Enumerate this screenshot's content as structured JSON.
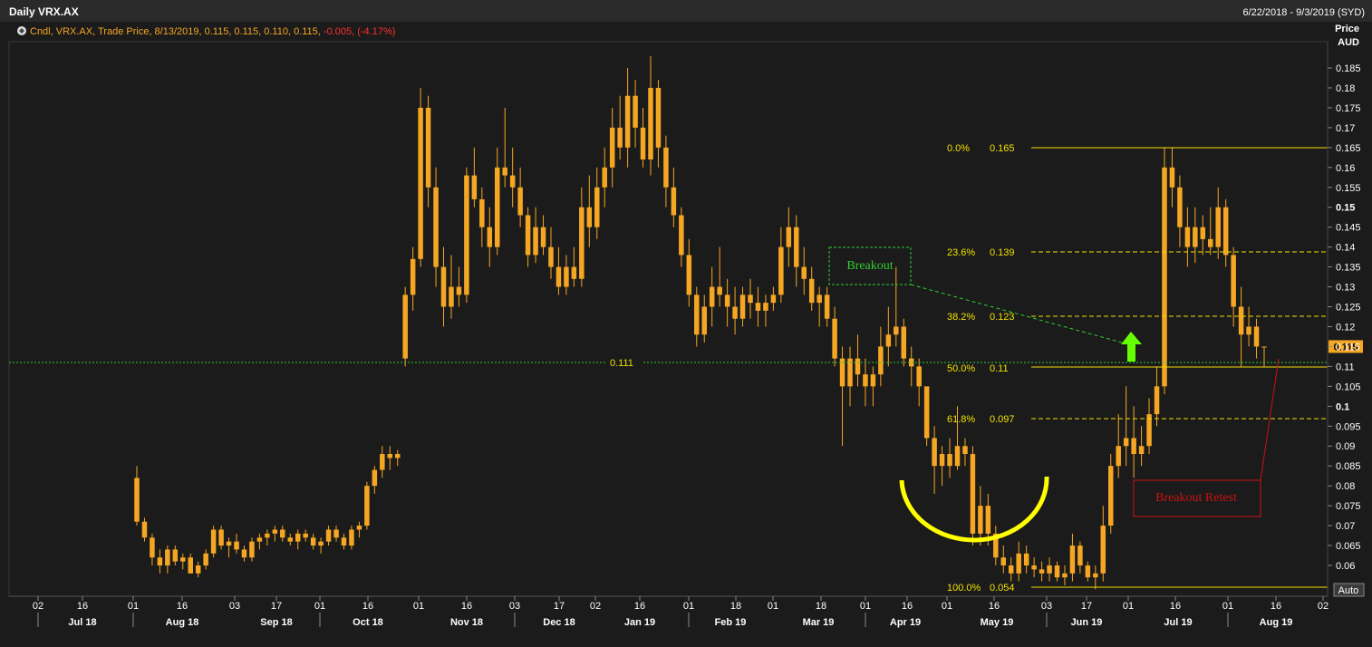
{
  "header": {
    "title": "Daily VRX.AX",
    "date_range": "6/22/2018 - 9/3/2019 (SYD)"
  },
  "legend": {
    "prefix": "Cndl, VRX.AX, Trade Price, 8/13/2019, 0.115, 0.115, 0.110, 0.115, ",
    "change": "-0.005, (-4.17%)"
  },
  "axis": {
    "price_label_1": "Price",
    "price_label_2": "AUD",
    "auto_label": "Auto",
    "current_price_label": "0.115",
    "level_label": "0.111",
    "y_ticks": [
      "0.185",
      "0.18",
      "0.175",
      "0.17",
      "0.165",
      "0.16",
      "0.155",
      "0.15",
      "0.145",
      "0.14",
      "0.135",
      "0.13",
      "0.125",
      "0.12",
      "0.115",
      "0.11",
      "0.105",
      "0.1",
      "0.095",
      "0.09",
      "0.085",
      "0.08",
      "0.075",
      "0.07",
      "0.065",
      "0.06"
    ],
    "x_day_ticks": [
      "02",
      "16",
      "01",
      "16",
      "03",
      "17",
      "01",
      "16",
      "01",
      "16",
      "03",
      "17",
      "02",
      "16",
      "01",
      "18",
      "01",
      "18",
      "01",
      "16",
      "01",
      "16",
      "03",
      "17",
      "01",
      "16",
      "01",
      "16",
      "02"
    ],
    "x_month_ticks": [
      "Jul 18",
      "Aug 18",
      "Sep 18",
      "Oct 18",
      "Nov 18",
      "Dec 18",
      "Jan 19",
      "Feb 19",
      "Mar 19",
      "Apr 19",
      "May 19",
      "Jun 19",
      "Jul 19",
      "Aug 19"
    ]
  },
  "annotations": {
    "breakout": "Breakout",
    "breakout_retest": "Breakout Retest"
  },
  "colors": {
    "background": "#1b1b1b",
    "candle": "#f5a623",
    "fib": "#f0e000",
    "support": "#33cc33",
    "retest": "#cc1111",
    "arrow": "#66ff00"
  },
  "chart_data": {
    "type": "candlestick",
    "symbol": "VRX.AX",
    "ylabel": "Price AUD",
    "ylim": [
      0.05,
      0.19
    ],
    "support_level": 0.111,
    "current_price": 0.115,
    "last_candle": {
      "date": "8/13/2019",
      "open": 0.115,
      "high": 0.115,
      "low": 0.11,
      "close": 0.115,
      "change": -0.005,
      "change_pct": -4.17
    },
    "fibonacci": [
      {
        "label": "0.0%",
        "value": "0.165",
        "style": "solid"
      },
      {
        "label": "23.6%",
        "value": "0.139",
        "style": "dashed"
      },
      {
        "label": "38.2%",
        "value": "0.123",
        "style": "dashed"
      },
      {
        "label": "50.0%",
        "value": "0.11",
        "style": "solid"
      },
      {
        "label": "61.8%",
        "value": "0.097",
        "style": "dashed"
      },
      {
        "label": "100.0%",
        "value": "0.054",
        "style": "solid"
      }
    ],
    "series": [
      {
        "values": [
          [
            0.082,
            0.085,
            0.07,
            0.071
          ],
          [
            0.071,
            0.072,
            0.066,
            0.067
          ],
          [
            0.067,
            0.068,
            0.06,
            0.062
          ],
          [
            0.062,
            0.064,
            0.058,
            0.06
          ],
          [
            0.06,
            0.065,
            0.058,
            0.064
          ],
          [
            0.064,
            0.065,
            0.06,
            0.061
          ],
          [
            0.061,
            0.063,
            0.059,
            0.062
          ],
          [
            0.062,
            0.063,
            0.058,
            0.058
          ],
          [
            0.058,
            0.061,
            0.057,
            0.06
          ],
          [
            0.06,
            0.064,
            0.059,
            0.063
          ],
          [
            0.063,
            0.07,
            0.062,
            0.069
          ],
          [
            0.069,
            0.07,
            0.064,
            0.065
          ],
          [
            0.065,
            0.067,
            0.062,
            0.066
          ],
          [
            0.066,
            0.068,
            0.063,
            0.064
          ],
          [
            0.064,
            0.065,
            0.061,
            0.062
          ],
          [
            0.062,
            0.067,
            0.061,
            0.066
          ],
          [
            0.066,
            0.068,
            0.064,
            0.067
          ],
          [
            0.067,
            0.069,
            0.065,
            0.068
          ],
          [
            0.068,
            0.07,
            0.066,
            0.069
          ],
          [
            0.069,
            0.07,
            0.066,
            0.067
          ],
          [
            0.067,
            0.068,
            0.065,
            0.066
          ],
          [
            0.066,
            0.069,
            0.064,
            0.068
          ],
          [
            0.068,
            0.069,
            0.066,
            0.067
          ],
          [
            0.067,
            0.068,
            0.064,
            0.065
          ],
          [
            0.065,
            0.067,
            0.063,
            0.066
          ],
          [
            0.066,
            0.07,
            0.065,
            0.069
          ],
          [
            0.069,
            0.07,
            0.066,
            0.067
          ],
          [
            0.067,
            0.068,
            0.064,
            0.065
          ],
          [
            0.065,
            0.07,
            0.064,
            0.069
          ],
          [
            0.069,
            0.071,
            0.067,
            0.07
          ],
          [
            0.07,
            0.081,
            0.069,
            0.08
          ],
          [
            0.08,
            0.085,
            0.078,
            0.084
          ],
          [
            0.084,
            0.09,
            0.082,
            0.088
          ],
          [
            0.088,
            0.09,
            0.084,
            0.087
          ],
          [
            0.087,
            0.089,
            0.085,
            0.088
          ],
          [
            0.112,
            0.13,
            0.11,
            0.128
          ],
          [
            0.128,
            0.14,
            0.124,
            0.137
          ],
          [
            0.137,
            0.18,
            0.135,
            0.175
          ],
          [
            0.175,
            0.178,
            0.15,
            0.155
          ],
          [
            0.155,
            0.16,
            0.13,
            0.135
          ],
          [
            0.135,
            0.14,
            0.12,
            0.125
          ],
          [
            0.125,
            0.138,
            0.122,
            0.13
          ],
          [
            0.13,
            0.135,
            0.125,
            0.128
          ],
          [
            0.128,
            0.16,
            0.126,
            0.158
          ],
          [
            0.158,
            0.165,
            0.15,
            0.152
          ],
          [
            0.152,
            0.155,
            0.14,
            0.145
          ],
          [
            0.145,
            0.15,
            0.135,
            0.14
          ],
          [
            0.14,
            0.165,
            0.138,
            0.16
          ],
          [
            0.16,
            0.175,
            0.155,
            0.158
          ],
          [
            0.158,
            0.165,
            0.15,
            0.155
          ],
          [
            0.155,
            0.16,
            0.145,
            0.148
          ],
          [
            0.148,
            0.15,
            0.135,
            0.138
          ],
          [
            0.138,
            0.15,
            0.136,
            0.145
          ],
          [
            0.145,
            0.148,
            0.138,
            0.14
          ],
          [
            0.14,
            0.145,
            0.132,
            0.135
          ],
          [
            0.135,
            0.14,
            0.128,
            0.13
          ],
          [
            0.13,
            0.138,
            0.128,
            0.135
          ],
          [
            0.135,
            0.14,
            0.13,
            0.132
          ],
          [
            0.132,
            0.155,
            0.13,
            0.15
          ],
          [
            0.15,
            0.158,
            0.14,
            0.145
          ],
          [
            0.145,
            0.16,
            0.142,
            0.155
          ],
          [
            0.155,
            0.165,
            0.15,
            0.16
          ],
          [
            0.16,
            0.175,
            0.155,
            0.17
          ],
          [
            0.17,
            0.178,
            0.162,
            0.165
          ],
          [
            0.165,
            0.185,
            0.16,
            0.178
          ],
          [
            0.178,
            0.182,
            0.165,
            0.17
          ],
          [
            0.17,
            0.175,
            0.16,
            0.162
          ],
          [
            0.162,
            0.188,
            0.158,
            0.18
          ],
          [
            0.18,
            0.182,
            0.16,
            0.165
          ],
          [
            0.165,
            0.168,
            0.15,
            0.155
          ],
          [
            0.155,
            0.16,
            0.145,
            0.148
          ],
          [
            0.148,
            0.15,
            0.135,
            0.138
          ],
          [
            0.138,
            0.142,
            0.125,
            0.128
          ],
          [
            0.128,
            0.13,
            0.115,
            0.118
          ],
          [
            0.118,
            0.128,
            0.116,
            0.125
          ],
          [
            0.125,
            0.135,
            0.12,
            0.13
          ],
          [
            0.13,
            0.14,
            0.125,
            0.128
          ],
          [
            0.128,
            0.132,
            0.12,
            0.125
          ],
          [
            0.125,
            0.13,
            0.118,
            0.122
          ],
          [
            0.122,
            0.13,
            0.12,
            0.128
          ],
          [
            0.128,
            0.132,
            0.122,
            0.126
          ],
          [
            0.126,
            0.13,
            0.12,
            0.124
          ],
          [
            0.124,
            0.128,
            0.12,
            0.126
          ],
          [
            0.126,
            0.13,
            0.124,
            0.128
          ],
          [
            0.128,
            0.145,
            0.126,
            0.14
          ],
          [
            0.14,
            0.15,
            0.135,
            0.145
          ],
          [
            0.145,
            0.148,
            0.13,
            0.135
          ],
          [
            0.135,
            0.14,
            0.128,
            0.132
          ],
          [
            0.132,
            0.135,
            0.124,
            0.126
          ],
          [
            0.126,
            0.13,
            0.12,
            0.128
          ],
          [
            0.128,
            0.13,
            0.12,
            0.122
          ],
          [
            0.122,
            0.125,
            0.11,
            0.112
          ],
          [
            0.112,
            0.115,
            0.09,
            0.105
          ],
          [
            0.105,
            0.115,
            0.1,
            0.112
          ],
          [
            0.112,
            0.118,
            0.105,
            0.108
          ],
          [
            0.108,
            0.112,
            0.1,
            0.105
          ],
          [
            0.105,
            0.11,
            0.1,
            0.108
          ],
          [
            0.108,
            0.12,
            0.105,
            0.115
          ],
          [
            0.115,
            0.125,
            0.11,
            0.118
          ],
          [
            0.118,
            0.135,
            0.115,
            0.12
          ],
          [
            0.12,
            0.122,
            0.11,
            0.112
          ],
          [
            0.112,
            0.115,
            0.105,
            0.11
          ],
          [
            0.11,
            0.112,
            0.1,
            0.105
          ],
          [
            0.105,
            0.098,
            0.09,
            0.092
          ],
          [
            0.092,
            0.095,
            0.078,
            0.085
          ],
          [
            0.085,
            0.09,
            0.08,
            0.088
          ],
          [
            0.088,
            0.092,
            0.082,
            0.085
          ],
          [
            0.085,
            0.1,
            0.084,
            0.09
          ],
          [
            0.09,
            0.092,
            0.085,
            0.088
          ],
          [
            0.088,
            0.09,
            0.065,
            0.068
          ],
          [
            0.068,
            0.08,
            0.065,
            0.075
          ],
          [
            0.075,
            0.078,
            0.065,
            0.068
          ],
          [
            0.068,
            0.07,
            0.06,
            0.062
          ],
          [
            0.062,
            0.065,
            0.058,
            0.06
          ],
          [
            0.06,
            0.062,
            0.056,
            0.058
          ],
          [
            0.058,
            0.066,
            0.056,
            0.063
          ],
          [
            0.063,
            0.065,
            0.058,
            0.06
          ],
          [
            0.06,
            0.062,
            0.057,
            0.059
          ],
          [
            0.059,
            0.061,
            0.056,
            0.058
          ],
          [
            0.058,
            0.062,
            0.056,
            0.06
          ],
          [
            0.06,
            0.061,
            0.056,
            0.057
          ],
          [
            0.057,
            0.06,
            0.055,
            0.058
          ],
          [
            0.058,
            0.068,
            0.056,
            0.065
          ],
          [
            0.065,
            0.066,
            0.058,
            0.06
          ],
          [
            0.06,
            0.061,
            0.056,
            0.057
          ],
          [
            0.057,
            0.06,
            0.054,
            0.058
          ],
          [
            0.058,
            0.075,
            0.056,
            0.07
          ],
          [
            0.07,
            0.088,
            0.068,
            0.085
          ],
          [
            0.085,
            0.098,
            0.082,
            0.09
          ],
          [
            0.09,
            0.105,
            0.085,
            0.092
          ],
          [
            0.092,
            0.1,
            0.082,
            0.088
          ],
          [
            0.088,
            0.095,
            0.085,
            0.09
          ],
          [
            0.09,
            0.102,
            0.088,
            0.098
          ],
          [
            0.098,
            0.11,
            0.095,
            0.105
          ],
          [
            0.105,
            0.165,
            0.103,
            0.16
          ],
          [
            0.16,
            0.165,
            0.15,
            0.155
          ],
          [
            0.155,
            0.158,
            0.14,
            0.145
          ],
          [
            0.145,
            0.15,
            0.135,
            0.14
          ],
          [
            0.14,
            0.15,
            0.136,
            0.145
          ],
          [
            0.145,
            0.148,
            0.138,
            0.142
          ],
          [
            0.142,
            0.15,
            0.138,
            0.14
          ],
          [
            0.14,
            0.155,
            0.137,
            0.15
          ],
          [
            0.15,
            0.152,
            0.135,
            0.138
          ],
          [
            0.138,
            0.14,
            0.12,
            0.125
          ],
          [
            0.125,
            0.13,
            0.11,
            0.118
          ],
          [
            0.118,
            0.125,
            0.115,
            0.12
          ],
          [
            0.12,
            0.122,
            0.112,
            0.115
          ],
          [
            0.115,
            0.115,
            0.11,
            0.115
          ]
        ]
      }
    ]
  }
}
